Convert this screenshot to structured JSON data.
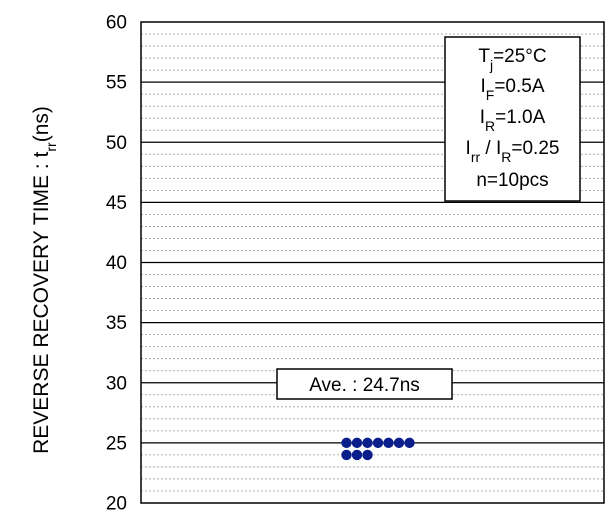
{
  "chart_data": {
    "type": "scatter",
    "ylabel_main": "REVERSE RECOVERY TIME : t",
    "ylabel_sub": "rr",
    "ylabel_unit": "(ns)",
    "ylim": [
      20,
      60
    ],
    "y_major_step": 5,
    "y_minor_step": 1,
    "y_ticks": [
      "60",
      "55",
      "50",
      "45",
      "40",
      "35",
      "30",
      "25",
      "20"
    ],
    "grid": true,
    "points": [
      {
        "y": 25,
        "i": 0
      },
      {
        "y": 25,
        "i": 1
      },
      {
        "y": 25,
        "i": 2
      },
      {
        "y": 25,
        "i": 3
      },
      {
        "y": 25,
        "i": 4
      },
      {
        "y": 25,
        "i": 5
      },
      {
        "y": 25,
        "i": 6
      },
      {
        "y": 24,
        "i": 0
      },
      {
        "y": 24,
        "i": 1
      },
      {
        "y": 24,
        "i": 2
      }
    ],
    "point_color": "#0a1e8c",
    "average_label": "Ave. : 24.7ns",
    "conditions": [
      {
        "main": "T",
        "sub": "j",
        "rest": "=25°C"
      },
      {
        "main": "I",
        "sub": "F",
        "rest": "=0.5A"
      },
      {
        "main": "I",
        "sub": "R",
        "rest": "=1.0A"
      },
      {
        "main": "I",
        "sub": "rr",
        "rest": " / I",
        "sub2": "R",
        "rest2": "=0.25"
      },
      {
        "main": "n=10pcs",
        "sub": "",
        "rest": ""
      }
    ]
  }
}
